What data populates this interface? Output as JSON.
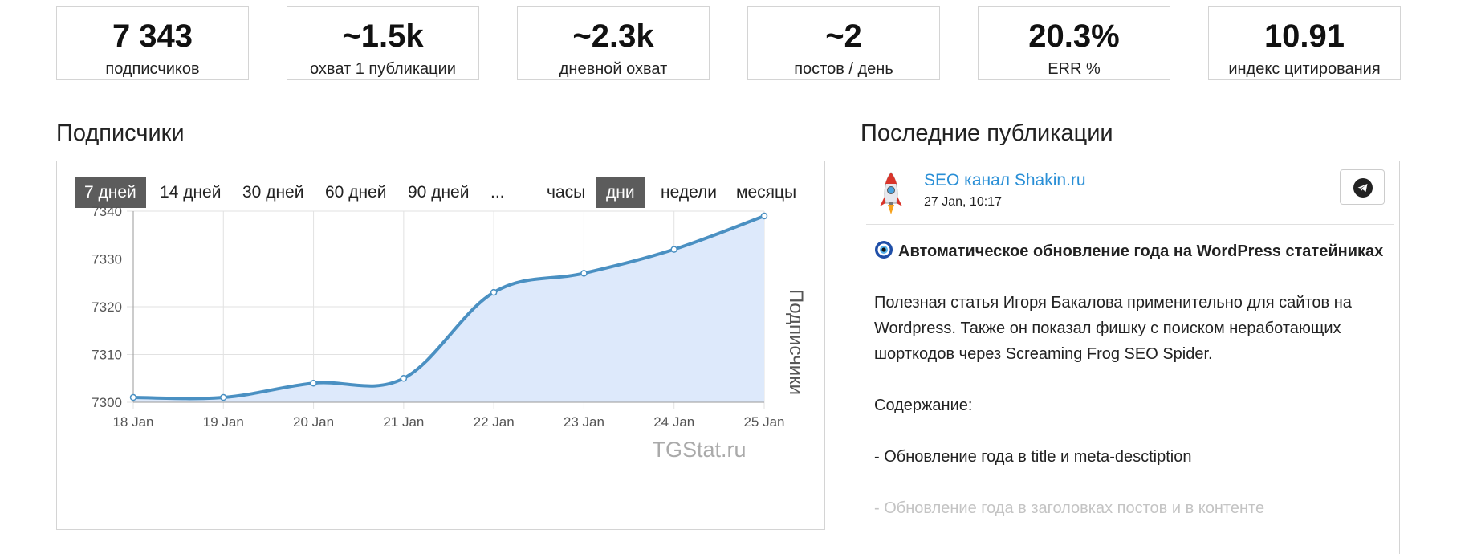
{
  "stats": [
    {
      "value": "7 343",
      "label": "подписчиков"
    },
    {
      "value": "~1.5k",
      "label": "охват 1 публикации"
    },
    {
      "value": "~2.3k",
      "label": "дневной охват"
    },
    {
      "value": "~2",
      "label": "постов / день"
    },
    {
      "value": "20.3%",
      "label": "ERR %"
    },
    {
      "value": "10.91",
      "label": "индекс цитирования"
    }
  ],
  "subscribers": {
    "title": "Подписчики",
    "ranges": [
      "7 дней",
      "14 дней",
      "30 дней",
      "60 дней",
      "90 дней",
      "..."
    ],
    "active_range": "7 дней",
    "granularity": [
      "часы",
      "дни",
      "недели",
      "месяцы"
    ],
    "active_granularity": "дни",
    "watermark": "TGStat.ru"
  },
  "chart_data": {
    "type": "area",
    "categories": [
      "18 Jan",
      "19 Jan",
      "20 Jan",
      "21 Jan",
      "22 Jan",
      "23 Jan",
      "24 Jan",
      "25 Jan"
    ],
    "series": [
      {
        "name": "Подписчики",
        "values": [
          7301,
          7301,
          7304,
          7305,
          7323,
          7327,
          7332,
          7339
        ]
      }
    ],
    "ylabel": "Подписчики",
    "ylim": [
      7300,
      7340
    ],
    "yticks": [
      7300,
      7310,
      7320,
      7330,
      7340
    ],
    "grid": true,
    "line_color": "#4a90c2",
    "fill_color": "#dde9fb"
  },
  "posts": {
    "title": "Последние публикации",
    "channel_name": "SEO канал Shakin.ru",
    "date": "27 Jan, 10:17",
    "post_title": "Автоматическое обновление года на WordPress статейниках",
    "paragraph": "Полезная статья Игоря Бакалова применительно для сайтов на Wordpress. Также он показал фишку с поиском неработающих шорткодов через Screaming Frog SEO Spider.",
    "contents_label": "Содержание:",
    "item1": "- Обновление года в title и meta-desctiption",
    "item2": "- Обновление года в заголовках постов и в контенте",
    "channel_icon": "rocket-icon",
    "share_icon": "telegram-icon",
    "title_icon": "nazar-eye-icon"
  }
}
